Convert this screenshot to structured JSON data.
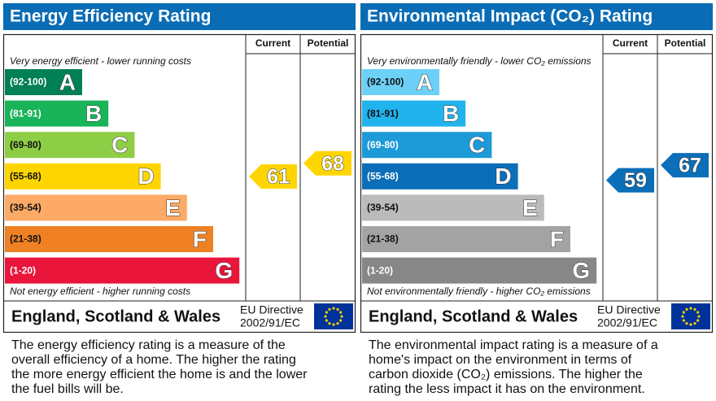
{
  "panels": [
    {
      "title": "Energy Efficiency Rating",
      "columns": [
        "Current",
        "Potential"
      ],
      "top_note": "Very energy efficient - lower running costs",
      "bottom_note": "Not energy efficient - higher running costs",
      "bands": [
        {
          "range": "(92-100)",
          "letter": "A",
          "color": "#008054"
        },
        {
          "range": "(81-91)",
          "letter": "B",
          "color": "#19b459"
        },
        {
          "range": "(69-80)",
          "letter": "C",
          "color": "#8dce46"
        },
        {
          "range": "(55-68)",
          "letter": "D",
          "color": "#ffd500"
        },
        {
          "range": "(39-54)",
          "letter": "E",
          "color": "#fcaa65"
        },
        {
          "range": "(21-38)",
          "letter": "F",
          "color": "#ef8023"
        },
        {
          "range": "(1-20)",
          "letter": "G",
          "color": "#e9153b"
        }
      ],
      "current": 61,
      "potential": 68,
      "region": "England, Scotland & Wales",
      "directive": [
        "EU Directive",
        "2002/91/EC"
      ],
      "description": "The energy efficiency rating is a measure of the overall efficiency of a home. The higher the rating the more energy efficient the home is and the lower the fuel bills will be."
    },
    {
      "title": "Environmental Impact (CO₂) Rating",
      "columns": [
        "Current",
        "Potential"
      ],
      "top_note": "Very environmentally friendly - lower CO₂ emissions",
      "bottom_note": "Not environmentally friendly - higher CO₂ emissions",
      "bands": [
        {
          "range": "(92-100)",
          "letter": "A",
          "color": "#6dd0f7"
        },
        {
          "range": "(81-91)",
          "letter": "B",
          "color": "#21b3ec"
        },
        {
          "range": "(69-80)",
          "letter": "C",
          "color": "#1d9ad8"
        },
        {
          "range": "(55-68)",
          "letter": "D",
          "color": "#0b6eb8"
        },
        {
          "range": "(39-54)",
          "letter": "E",
          "color": "#bbbbbb"
        },
        {
          "range": "(21-38)",
          "letter": "F",
          "color": "#a3a3a3"
        },
        {
          "range": "(1-20)",
          "letter": "G",
          "color": "#878787"
        }
      ],
      "current": 59,
      "potential": 67,
      "region": "England, Scotland & Wales",
      "directive": [
        "EU Directive",
        "2002/91/EC"
      ],
      "description": "The environmental impact rating is a measure of a home's impact on the environment in terms of carbon dioxide (CO₂) emissions. The higher the rating the less impact it has on the environment."
    }
  ]
}
